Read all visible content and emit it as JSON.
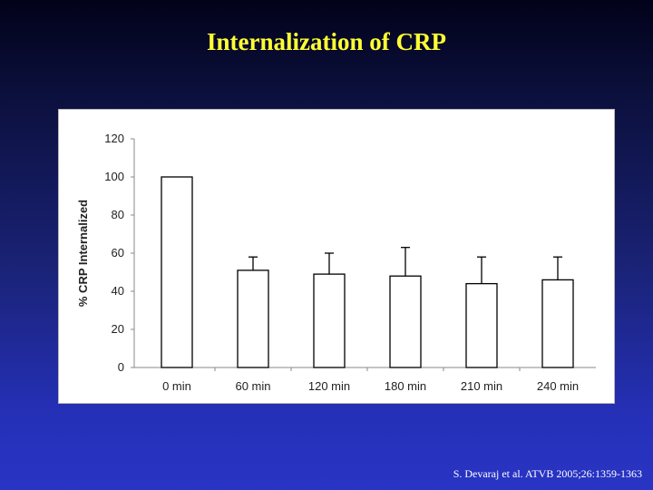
{
  "slide": {
    "title": "Internalization of CRP",
    "citation": "S. Devaraj et al. ATVB 2005;26:1359-1363"
  },
  "colors": {
    "title": "#ffff33",
    "background_top": "#02021a",
    "background_bottom": "#2934c4",
    "bar_fill": "#ffffff",
    "bar_stroke": "#000000"
  },
  "chart_data": {
    "type": "bar",
    "title": "",
    "xlabel": "",
    "ylabel": "% CRP Internalized",
    "categories": [
      "0 min",
      "60 min",
      "120 min",
      "180 min",
      "210 min",
      "240 min"
    ],
    "series": [
      {
        "values": [
          100,
          51,
          49,
          48,
          44,
          46
        ],
        "error_upper": [
          0,
          7,
          11,
          15,
          14,
          12
        ]
      }
    ],
    "ylim": [
      0,
      120
    ],
    "yticks": [
      0,
      20,
      40,
      60,
      80,
      100,
      120
    ],
    "grid": false,
    "legend": "none"
  }
}
